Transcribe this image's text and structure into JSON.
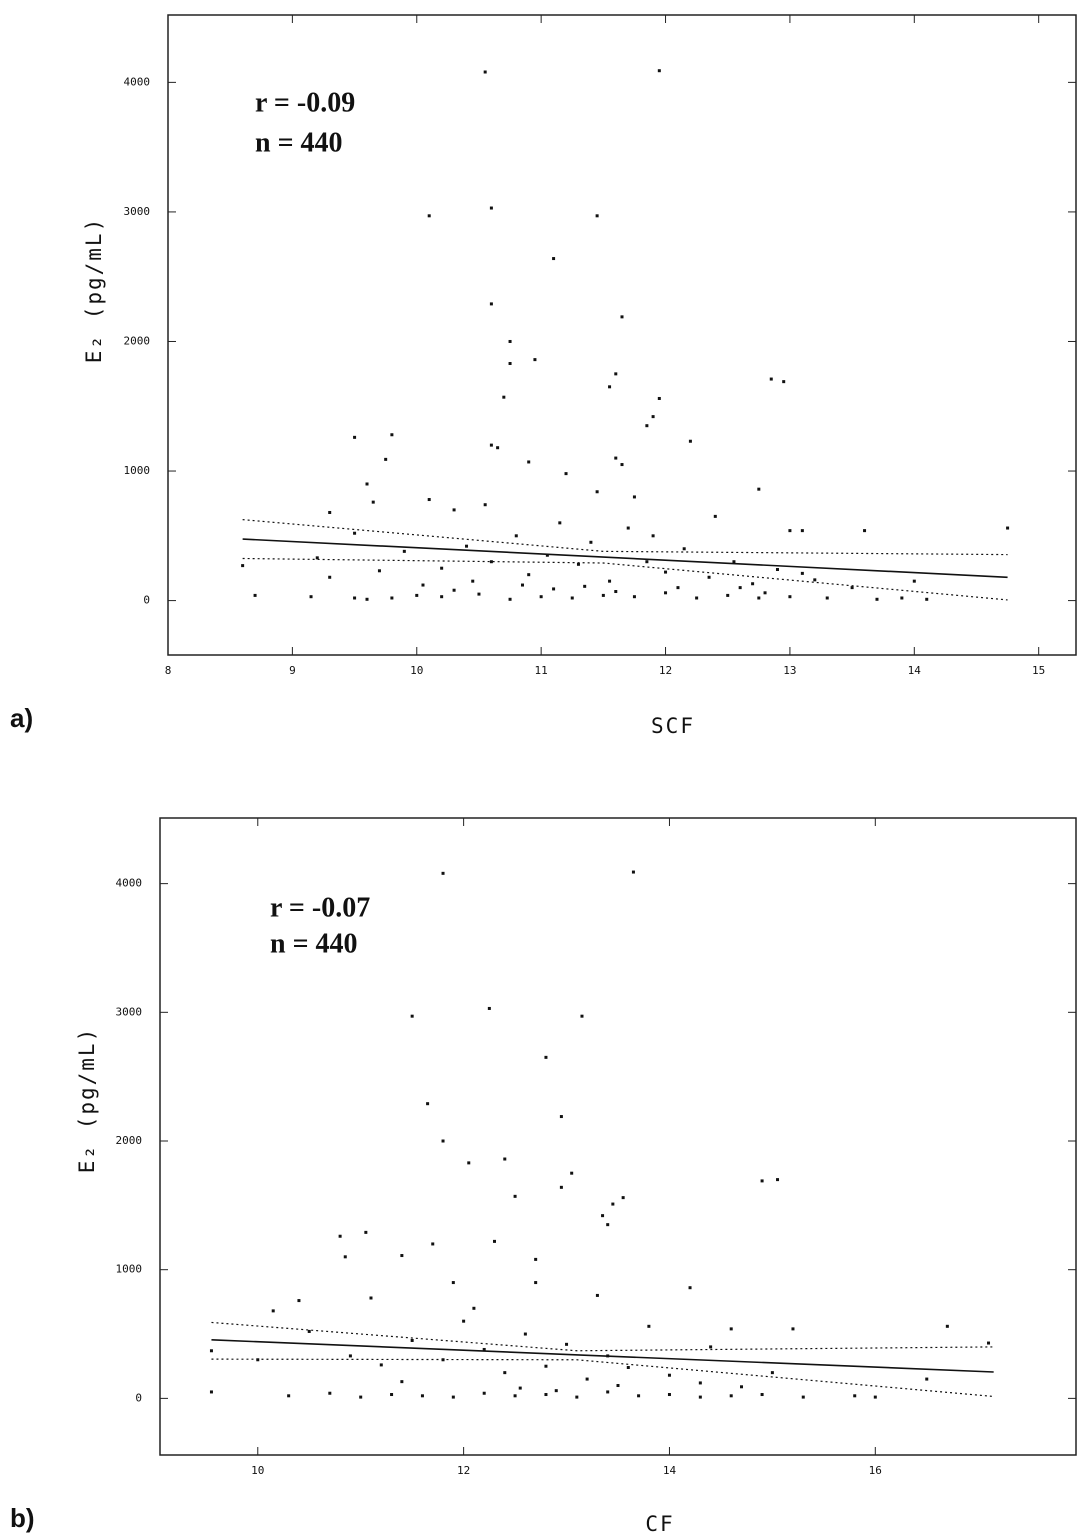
{
  "chart_data": [
    {
      "type": "scatter",
      "panel_label": "a)",
      "xlabel": "SCF",
      "ylabel": "E₂ (pg/mL)",
      "annotations": [
        "r = -0.09",
        "n = 440"
      ],
      "xlim": [
        8,
        15.3
      ],
      "ylim": [
        -420,
        4520
      ],
      "xticks": [
        8,
        9,
        10,
        11,
        12,
        13,
        14,
        15
      ],
      "yticks": [
        0,
        1000,
        2000,
        3000,
        4000
      ],
      "color": "#111111",
      "x": [
        10.1,
        10.6,
        11.45,
        10.55,
        11.95,
        11.1,
        10.6,
        11.65,
        10.75,
        10.95,
        10.75,
        11.6,
        11.55,
        12.85,
        12.95,
        11.95,
        11.9,
        11.85,
        10.7,
        12.2,
        9.5,
        9.8,
        9.75,
        10.6,
        10.65,
        9.6,
        10.9,
        11.6,
        11.65,
        12.75,
        9.65,
        10.1,
        13.0,
        13.1,
        13.6,
        14.75,
        9.3,
        10.3,
        10.55,
        11.2,
        11.45,
        11.75,
        12.4,
        8.6,
        8.7,
        9.15,
        9.5,
        9.6,
        9.8,
        10.0,
        10.2,
        10.5,
        10.75,
        11.0,
        11.25,
        11.5,
        11.75,
        12.0,
        12.25,
        12.5,
        12.75,
        13.0,
        13.3,
        13.7,
        13.9,
        14.1,
        14.0,
        9.2,
        9.5,
        9.9,
        10.2,
        10.4,
        10.6,
        10.8,
        10.9,
        11.05,
        11.15,
        11.3,
        11.4,
        11.55,
        11.7,
        11.85,
        12.0,
        12.15,
        12.35,
        12.55,
        12.7,
        12.9,
        13.2,
        13.5,
        10.45,
        10.85,
        11.1,
        11.35,
        11.6,
        12.1,
        12.8,
        9.3,
        9.7,
        10.05,
        10.3,
        11.9,
        12.6,
        13.1
      ],
      "y": [
        2970,
        3030,
        2970,
        4080,
        4090,
        2640,
        2290,
        2190,
        2000,
        1860,
        1830,
        1750,
        1650,
        1710,
        1690,
        1560,
        1420,
        1350,
        1570,
        1230,
        1260,
        1280,
        1090,
        1200,
        1180,
        900,
        1070,
        1100,
        1050,
        860,
        760,
        780,
        540,
        540,
        540,
        560,
        680,
        700,
        740,
        980,
        840,
        800,
        650,
        270,
        40,
        30,
        20,
        10,
        20,
        40,
        30,
        50,
        10,
        30,
        20,
        40,
        30,
        60,
        20,
        40,
        20,
        30,
        20,
        10,
        20,
        10,
        150,
        330,
        520,
        380,
        250,
        420,
        300,
        500,
        200,
        350,
        600,
        280,
        450,
        150,
        560,
        300,
        220,
        400,
        180,
        300,
        130,
        240,
        160,
        100,
        150,
        120,
        90,
        110,
        70,
        100,
        60,
        180,
        230,
        120,
        80,
        500,
        100,
        210
      ],
      "fit_line": {
        "x": [
          8.6,
          14.75
        ],
        "y": [
          475,
          180
        ]
      },
      "ci_upper": {
        "x": [
          8.6,
          11.5,
          14.75
        ],
        "y": [
          625,
          380,
          355
        ]
      },
      "ci_lower": {
        "x": [
          8.6,
          11.5,
          14.75
        ],
        "y": [
          325,
          290,
          5
        ]
      }
    },
    {
      "type": "scatter",
      "panel_label": "b)",
      "xlabel": "CF",
      "ylabel": "E₂ (pg/mL)",
      "annotations": [
        "r = -0.07",
        "n = 440"
      ],
      "xlim": [
        9.05,
        17.95
      ],
      "ylim": [
        -440,
        4510
      ],
      "xticks": [
        10,
        12,
        14,
        16
      ],
      "yticks": [
        0,
        1000,
        2000,
        3000,
        4000
      ],
      "color": "#111111",
      "x": [
        11.8,
        13.65,
        11.5,
        12.25,
        13.15,
        12.8,
        12.95,
        11.65,
        11.8,
        12.05,
        12.4,
        13.05,
        12.95,
        13.55,
        13.45,
        14.9,
        15.05,
        13.4,
        13.35,
        12.3,
        11.7,
        10.8,
        11.05,
        10.85,
        11.4,
        12.5,
        12.7,
        14.2,
        10.4,
        11.1,
        14.6,
        15.2,
        16.7,
        10.15,
        9.55,
        9.55,
        10.0,
        10.3,
        10.7,
        11.0,
        11.3,
        11.6,
        11.9,
        12.2,
        12.5,
        12.8,
        13.1,
        13.4,
        13.7,
        14.0,
        14.3,
        14.6,
        14.9,
        15.3,
        15.8,
        16.0,
        16.5,
        10.5,
        10.9,
        11.2,
        11.5,
        11.8,
        12.0,
        12.2,
        12.4,
        12.6,
        12.8,
        13.0,
        13.2,
        13.4,
        13.6,
        13.8,
        14.0,
        14.3,
        14.7,
        15.0,
        12.1,
        12.7,
        13.3,
        11.9,
        12.55,
        12.9,
        13.5,
        11.4,
        14.4,
        17.1
      ],
      "y": [
        4080,
        4090,
        2970,
        3030,
        2970,
        2650,
        2190,
        2290,
        2000,
        1830,
        1860,
        1750,
        1640,
        1560,
        1510,
        1690,
        1700,
        1350,
        1420,
        1220,
        1200,
        1260,
        1290,
        1100,
        1110,
        1570,
        1080,
        860,
        760,
        780,
        540,
        540,
        560,
        680,
        370,
        50,
        300,
        20,
        40,
        10,
        30,
        20,
        10,
        40,
        20,
        30,
        10,
        50,
        20,
        30,
        10,
        20,
        30,
        10,
        20,
        10,
        150,
        520,
        330,
        260,
        450,
        300,
        600,
        380,
        200,
        500,
        250,
        420,
        150,
        330,
        240,
        560,
        180,
        120,
        90,
        200,
        700,
        900,
        800,
        900,
        80,
        60,
        100,
        130,
        400,
        430
      ],
      "fit_line": {
        "x": [
          9.55,
          17.15
        ],
        "y": [
          455,
          205
        ]
      },
      "ci_upper": {
        "x": [
          9.55,
          13.1,
          17.15
        ],
        "y": [
          590,
          370,
          400
        ]
      },
      "ci_lower": {
        "x": [
          9.55,
          13.1,
          17.15
        ],
        "y": [
          305,
          300,
          15
        ]
      }
    }
  ]
}
